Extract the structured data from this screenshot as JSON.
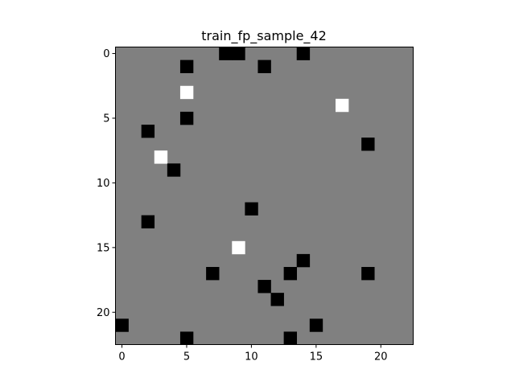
{
  "chart_data": {
    "type": "heatmap",
    "title": "train_fp_sample_42",
    "xlabel": "",
    "ylabel": "",
    "grid": false,
    "n_rows": 23,
    "n_cols": 23,
    "xlim": [
      -0.5,
      22.5
    ],
    "ylim": [
      22.5,
      -0.5
    ],
    "x_ticks": [
      0,
      5,
      10,
      15,
      20
    ],
    "y_ticks": [
      0,
      5,
      10,
      15,
      20
    ],
    "x_tick_labels": [
      "0",
      "5",
      "10",
      "15",
      "20"
    ],
    "y_tick_labels": [
      "0",
      "5",
      "10",
      "15",
      "20"
    ],
    "background_value": 0,
    "colors": {
      "negative": "#000000",
      "zero": "#808080",
      "positive": "#ffffff"
    },
    "cells": [
      {
        "row": 0,
        "col": 8,
        "value": -1
      },
      {
        "row": 0,
        "col": 9,
        "value": -1
      },
      {
        "row": 0,
        "col": 14,
        "value": -1
      },
      {
        "row": 1,
        "col": 5,
        "value": -1
      },
      {
        "row": 1,
        "col": 11,
        "value": -1
      },
      {
        "row": 3,
        "col": 5,
        "value": 1
      },
      {
        "row": 4,
        "col": 17,
        "value": 1
      },
      {
        "row": 5,
        "col": 5,
        "value": -1
      },
      {
        "row": 6,
        "col": 2,
        "value": -1
      },
      {
        "row": 7,
        "col": 19,
        "value": -1
      },
      {
        "row": 8,
        "col": 3,
        "value": 1
      },
      {
        "row": 9,
        "col": 4,
        "value": -1
      },
      {
        "row": 12,
        "col": 10,
        "value": -1
      },
      {
        "row": 13,
        "col": 2,
        "value": -1
      },
      {
        "row": 15,
        "col": 9,
        "value": 1
      },
      {
        "row": 16,
        "col": 14,
        "value": -1
      },
      {
        "row": 17,
        "col": 7,
        "value": -1
      },
      {
        "row": 17,
        "col": 13,
        "value": -1
      },
      {
        "row": 17,
        "col": 19,
        "value": -1
      },
      {
        "row": 18,
        "col": 11,
        "value": -1
      },
      {
        "row": 19,
        "col": 12,
        "value": -1
      },
      {
        "row": 21,
        "col": 0,
        "value": -1
      },
      {
        "row": 21,
        "col": 15,
        "value": -1
      },
      {
        "row": 22,
        "col": 5,
        "value": -1
      },
      {
        "row": 22,
        "col": 13,
        "value": -1
      }
    ]
  }
}
